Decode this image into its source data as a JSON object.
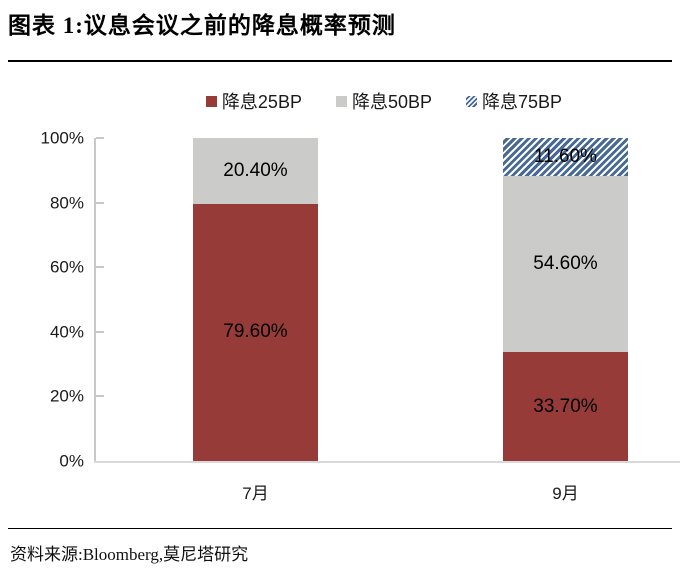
{
  "title": "图表 1:议息会议之前的降息概率预测",
  "source": "资料来源:Bloomberg,莫尼塔研究",
  "colors": {
    "bar_red": "#963B38",
    "bar_gray": "#CBCBCA",
    "bar_blue": "#466996",
    "axis": "#C8C8C8",
    "baseline": "#D9D9D9",
    "rule": "#000000"
  },
  "chart_data": {
    "type": "bar",
    "stacked": true,
    "title": "议息会议之前的降息概率预测",
    "categories": [
      "7月",
      "9月"
    ],
    "series": [
      {
        "name": "降息25BP",
        "values": [
          79.6,
          33.7
        ],
        "labels": [
          "79.60%",
          "33.70%"
        ],
        "color": "#963B38",
        "pattern": "solid"
      },
      {
        "name": "降息50BP",
        "values": [
          20.4,
          54.6
        ],
        "labels": [
          "20.40%",
          "54.60%"
        ],
        "color": "#CBCBCA",
        "pattern": "solid"
      },
      {
        "name": "降息75BP",
        "values": [
          0,
          11.6
        ],
        "labels": [
          "",
          "11.60%"
        ],
        "color": "#466996",
        "pattern": "diagonal-hatch"
      }
    ],
    "ylim": [
      0,
      100
    ],
    "yticks": [
      "0%",
      "20%",
      "40%",
      "60%",
      "80%",
      "100%"
    ],
    "grid": false,
    "legend_position": "top"
  }
}
